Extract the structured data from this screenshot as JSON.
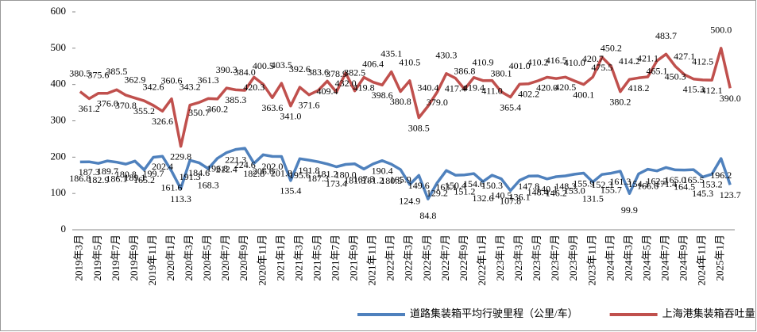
{
  "chart_data": {
    "type": "line",
    "categories": [
      "2019年3月",
      null,
      "2019年5月",
      null,
      "2019年7月",
      null,
      "2019年9月",
      null,
      "2019年11月",
      null,
      "2020年1月",
      null,
      "2020年3月",
      null,
      "2020年5月",
      null,
      "2020年7月",
      null,
      "2020年9月",
      null,
      "2020年11月",
      null,
      "2021年1月",
      null,
      "2021年3月",
      null,
      "2021年5月",
      null,
      "2021年7月",
      null,
      "2021年9月",
      null,
      "2021年11月",
      null,
      "2022年1月",
      null,
      "2022年3月",
      null,
      "2022年5月",
      null,
      "2022年7月",
      null,
      "2022年9月",
      null,
      "2022年11月",
      null,
      "2023年1月",
      null,
      "2023年3月",
      null,
      "2023年5月",
      null,
      "2023年7月",
      null,
      "2023年9月",
      null,
      "2023年11月",
      null,
      "2024年1月",
      null,
      "2024年3月",
      null,
      "2024年5月",
      null,
      "2024年7月",
      null,
      "2024年9月",
      null,
      "2024年11月",
      null,
      "2025年1月",
      null
    ],
    "series": [
      {
        "name": "道路集装箱平均行驶里程（公里/车）",
        "color": "#4f81bd",
        "values": [
          186.8,
          187.3,
          182.9,
          189.7,
          186.1,
          180.8,
          189.1,
          165.2,
          199.7,
          202.4,
          161.6,
          113.3,
          191.3,
          184.6,
          168.3,
          196.8,
          212.4,
          221.3,
          224.6,
          182.8,
          206.6,
          202.0,
          201.8,
          135.4,
          195.6,
          191.8,
          187.3,
          181.2,
          173.4,
          180.0,
          181.5,
          167.3,
          181.2,
          190.4,
          180.5,
          165.9,
          124.9,
          149.6,
          84.8,
          129.2,
          163.1,
          150.4,
          151.2,
          154.6,
          132.6,
          150.3,
          140.5,
          107.8,
          136.1,
          147.8,
          148.4,
          140.1,
          146.2,
          148.3,
          153.0,
          155.9,
          131.5,
          152.3,
          155.7,
          161.3,
          99.9,
          154.1,
          166.6,
          162.2,
          171.4,
          165.0,
          164.5,
          165.5,
          145.3,
          153.2,
          196.2,
          123.7
        ],
        "value_labels": [
          "186.8",
          "187.3",
          "182.9",
          "189.7",
          "186.1",
          "180.8",
          "189.1",
          "165.2",
          "199.7",
          "202.4",
          "161.6",
          "113.3",
          "191.3",
          "184.6",
          "168.3",
          "196.8",
          "212.4",
          "221.3",
          "224.6",
          "182.8",
          "206.6",
          "202.0",
          "201.8",
          "135.4",
          "195.6",
          "191.8",
          "187.3",
          "181.2",
          "173.4",
          "180.0",
          "181.5",
          "167.3",
          "181.2",
          "190.4",
          "180.5",
          "165.9",
          "124.9",
          "149.6",
          "84.8",
          "129.2",
          "163.1",
          "150.4",
          "151.2",
          "154.6",
          "132.6",
          "150.3",
          "140.5",
          "107.8",
          "136.1",
          "147.8",
          "148.4",
          "140.1",
          "146.2",
          "148.3",
          "153.0",
          "155.9",
          "131.5",
          "152.3",
          "155.7",
          "161.3",
          "99.9",
          "154.1",
          "166.6",
          "162.2",
          "171.4",
          "165.0",
          "164.5",
          "165.5",
          "145.3",
          "153.2",
          "196.2",
          "123.7"
        ]
      },
      {
        "name": "上海港集装箱吞吐量（万TEU）",
        "color": "#c0504d",
        "values": [
          380.5,
          361.2,
          375.6,
          376.0,
          385.5,
          370.8,
          362.9,
          355.2,
          342.6,
          326.6,
          360.6,
          229.8,
          343.2,
          350.7,
          361.3,
          360.2,
          390.3,
          385.3,
          384.0,
          420.3,
          400.5,
          363.6,
          403.5,
          341.0,
          392.6,
          371.6,
          383.6,
          409.4,
          378.9,
          432.0,
          382.5,
          419.8,
          406.4,
          398.6,
          435.1,
          380.8,
          410.5,
          308.5,
          340.4,
          379.0,
          430.3,
          417.4,
          386.8,
          419.4,
          410.9,
          411.0,
          380.1,
          365.4,
          401.0,
          402.2,
          410.2,
          420.0,
          416.5,
          420.5,
          410.0,
          400.1,
          420.7,
          475.5,
          450.2,
          380.2,
          414.2,
          418.2,
          421.1,
          465.1,
          483.7,
          450.3,
          427.1,
          415.3,
          412.5,
          412.1,
          500.0,
          390.0
        ],
        "value_labels": [
          "380.5",
          "361.2",
          "375.6",
          "376.0",
          "385.5",
          "370.8",
          "362.9",
          "355.2",
          "342.6",
          "326.6",
          "360.6",
          "229.8",
          "343.2",
          "350.7",
          "361.3",
          "360.2",
          "390.3",
          "385.3",
          "384.0",
          "420.3",
          "400.5",
          "363.6",
          "403.5",
          "341.0",
          "392.6",
          "371.6",
          "383.6",
          "409.4",
          "378.9",
          "432.0",
          "382.5",
          "419.8",
          "406.4",
          "398.6",
          "435.1",
          "380.8",
          "410.5",
          "308.5",
          "340.4",
          "379.0",
          "430.3",
          "417.4",
          "386.8",
          "419.4",
          "410.9",
          "411.0",
          "380.1",
          "365.4",
          "401.0",
          "402.2",
          "410.2",
          "420.0",
          "416.5",
          "420.5",
          "410.0",
          "400.1",
          "420.7",
          "475.5",
          "450.2",
          "380.2",
          "414.2",
          "418.2",
          "421.1",
          "465.1",
          "483.7",
          "450.3",
          "427.1",
          "415.3",
          "412.5",
          "412.1",
          "500.0",
          "390.0"
        ]
      }
    ],
    "ylim": [
      0,
      600
    ],
    "yticks": [
      0,
      100,
      200,
      300,
      400,
      500,
      600
    ],
    "grid": false,
    "legend": "bottom"
  }
}
